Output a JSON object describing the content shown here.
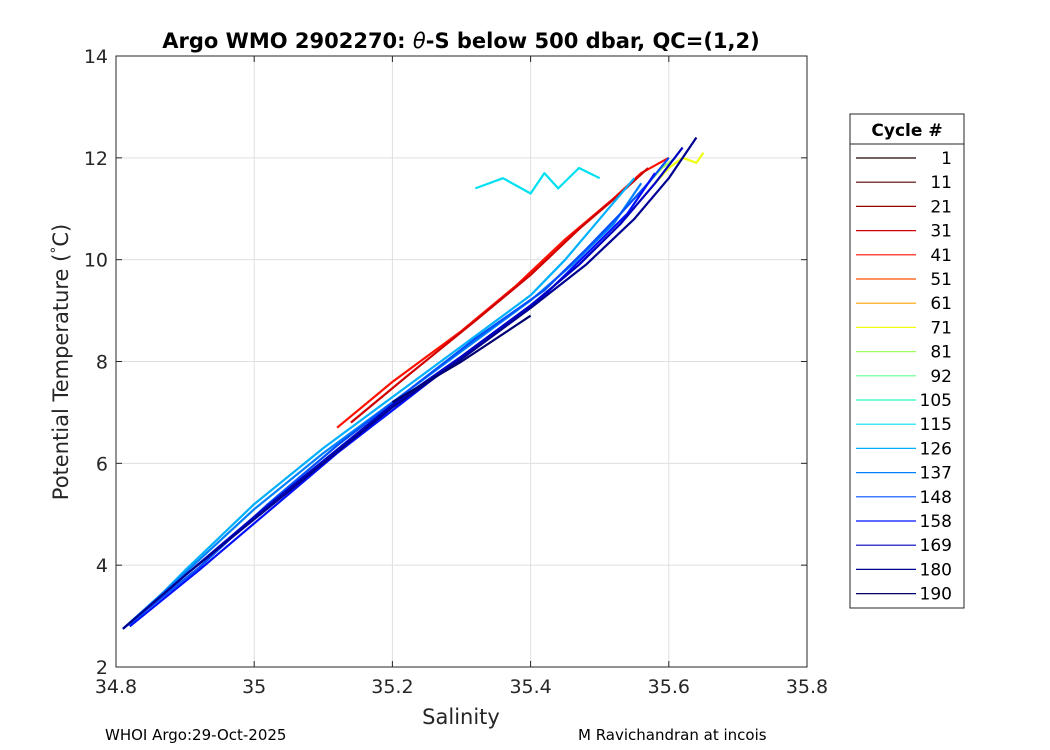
{
  "chart_data": {
    "type": "line",
    "title": "Argo WMO 2902270: θ-S below 500 dbar,  QC=(1,2)",
    "title_parts": {
      "before": "Argo WMO 2902270: ",
      "symbol": "θ",
      "after": "-S below 500 dbar,  QC=(1,2)"
    },
    "xlabel": "Salinity",
    "ylabel_parts": {
      "before": "Potential Temperature (",
      "degree": "°",
      "after": "C)"
    },
    "xlim": [
      34.8,
      35.8
    ],
    "ylim": [
      2,
      14
    ],
    "xticks": [
      34.8,
      35,
      35.2,
      35.4,
      35.6,
      35.8
    ],
    "xtick_labels": [
      "34.8",
      "35",
      "35.2",
      "35.4",
      "35.6",
      "35.8"
    ],
    "yticks": [
      2,
      4,
      6,
      8,
      10,
      12,
      14
    ],
    "ytick_labels": [
      "2",
      "4",
      "6",
      "8",
      "10",
      "12",
      "14"
    ],
    "grid": true,
    "legend": {
      "title": "Cycle #",
      "placement": "outside-right",
      "entries": [
        {
          "label": "1",
          "color": "#200000"
        },
        {
          "label": "11",
          "color": "#580000"
        },
        {
          "label": "21",
          "color": "#960000"
        },
        {
          "label": "31",
          "color": "#d00000"
        },
        {
          "label": "41",
          "color": "#ff1000"
        },
        {
          "label": "51",
          "color": "#ff5000"
        },
        {
          "label": "61",
          "color": "#ffa000"
        },
        {
          "label": "71",
          "color": "#f0ff10"
        },
        {
          "label": "81",
          "color": "#a0ff60"
        },
        {
          "label": "92",
          "color": "#60ff90"
        },
        {
          "label": "105",
          "color": "#20ffc0"
        },
        {
          "label": "115",
          "color": "#00e0f0"
        },
        {
          "label": "126",
          "color": "#00b0ff"
        },
        {
          "label": "137",
          "color": "#0080ff"
        },
        {
          "label": "148",
          "color": "#0050ff"
        },
        {
          "label": "158",
          "color": "#0010ff"
        },
        {
          "label": "169",
          "color": "#0000c0"
        },
        {
          "label": "180",
          "color": "#000090"
        },
        {
          "label": "190",
          "color": "#000070"
        }
      ]
    },
    "series": [
      {
        "color": "#ff1000",
        "x": [
          35.12,
          35.2,
          35.3,
          35.38,
          35.45,
          35.52,
          35.56,
          35.6
        ],
        "y": [
          6.7,
          7.6,
          8.6,
          9.5,
          10.4,
          11.2,
          11.7,
          12.0
        ]
      },
      {
        "color": "#d00000",
        "x": [
          35.14,
          35.22,
          35.32,
          35.4,
          35.47,
          35.53,
          35.57
        ],
        "y": [
          6.8,
          7.7,
          8.8,
          9.7,
          10.6,
          11.3,
          11.8
        ]
      },
      {
        "color": "#f0ff10",
        "x": [
          35.58,
          35.6,
          35.62,
          35.64,
          35.65
        ],
        "y": [
          11.5,
          11.8,
          12.0,
          11.9,
          12.1
        ]
      },
      {
        "color": "#a0ff60",
        "x": [
          35.55,
          35.57,
          35.59,
          35.61
        ],
        "y": [
          11.2,
          11.5,
          11.8,
          12.0
        ]
      },
      {
        "color": "#00e0f0",
        "x": [
          35.32,
          35.36,
          35.4,
          35.42,
          35.44,
          35.47,
          35.5
        ],
        "y": [
          11.4,
          11.6,
          11.3,
          11.7,
          11.4,
          11.8,
          11.6
        ]
      },
      {
        "color": "#00b0ff",
        "x": [
          34.82,
          34.9,
          35.0,
          35.1,
          35.2,
          35.3,
          35.4,
          35.45,
          35.5,
          35.55
        ],
        "y": [
          2.8,
          3.9,
          5.2,
          6.3,
          7.3,
          8.3,
          9.3,
          10.0,
          10.8,
          11.6
        ]
      },
      {
        "color": "#0080ff",
        "x": [
          34.81,
          34.9,
          35.0,
          35.1,
          35.2,
          35.3,
          35.4,
          35.46,
          35.52,
          35.56
        ],
        "y": [
          2.75,
          3.85,
          5.1,
          6.2,
          7.2,
          8.2,
          9.2,
          9.9,
          10.7,
          11.5
        ]
      },
      {
        "color": "#0050ff",
        "x": [
          34.81,
          34.92,
          35.02,
          35.12,
          35.22,
          35.32,
          35.42,
          35.48,
          35.53,
          35.57,
          35.6
        ],
        "y": [
          2.75,
          3.95,
          5.2,
          6.35,
          7.4,
          8.45,
          9.4,
          10.2,
          10.9,
          11.5,
          12.0
        ]
      },
      {
        "color": "#0010ff",
        "x": [
          34.82,
          34.92,
          35.02,
          35.12,
          35.22,
          35.32,
          35.42,
          35.48,
          35.54,
          35.58
        ],
        "y": [
          2.8,
          3.9,
          5.05,
          6.2,
          7.25,
          8.3,
          9.3,
          10.1,
          10.9,
          11.7
        ]
      },
      {
        "color": "#0000c0",
        "x": [
          34.81,
          34.9,
          35.0,
          35.1,
          35.2,
          35.3,
          35.4,
          35.47,
          35.53,
          35.58,
          35.62
        ],
        "y": [
          2.75,
          3.8,
          4.95,
          6.05,
          7.15,
          8.1,
          9.1,
          9.9,
          10.7,
          11.5,
          12.2
        ]
      },
      {
        "color": "#000090",
        "x": [
          34.81,
          34.9,
          35.0,
          35.1,
          35.2,
          35.3,
          35.4,
          35.48,
          35.55,
          35.6,
          35.64
        ],
        "y": [
          2.75,
          3.8,
          4.9,
          6.0,
          7.1,
          8.05,
          9.05,
          9.9,
          10.8,
          11.6,
          12.4
        ]
      },
      {
        "color": "#000070",
        "x": [
          35.2,
          35.3,
          35.4
        ],
        "y": [
          7.2,
          8.0,
          8.9
        ]
      }
    ]
  },
  "footer": {
    "left": "WHOI Argo:29-Oct-2025",
    "right": "M Ravichandran at incois"
  }
}
